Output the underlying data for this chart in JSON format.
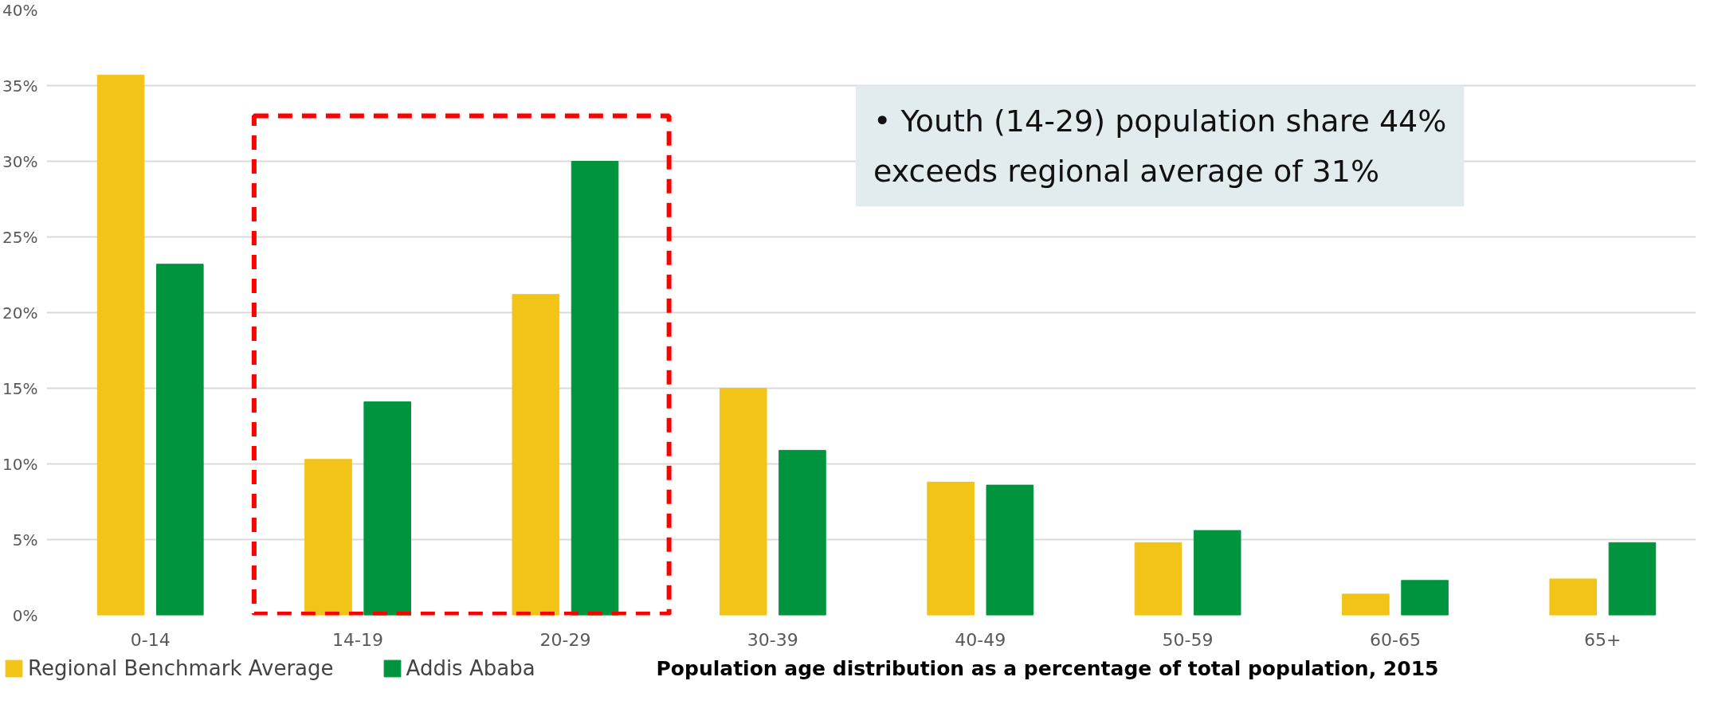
{
  "chart_data": {
    "type": "bar",
    "title": "Population age distribution as a percentage of total population, 2015",
    "categories": [
      "0-14",
      "14-19",
      "20-29",
      "30-39",
      "40-49",
      "50-59",
      "60-65",
      "65+"
    ],
    "series": [
      {
        "name": "Regional Benchmark Average",
        "color": "#f2c417",
        "values": [
          35.7,
          10.3,
          21.2,
          15.0,
          8.8,
          4.8,
          1.4,
          2.4
        ]
      },
      {
        "name": "Addis Ababa",
        "color": "#00943f",
        "values": [
          23.2,
          14.1,
          30.0,
          10.9,
          8.6,
          5.6,
          2.3,
          4.8
        ]
      }
    ],
    "ylim": [
      0,
      40
    ],
    "yticks": [
      {
        "value": 0,
        "label": "0%"
      },
      {
        "value": 5,
        "label": "5%"
      },
      {
        "value": 10,
        "label": "10%"
      },
      {
        "value": 15,
        "label": "15%"
      },
      {
        "value": 20,
        "label": "20%"
      },
      {
        "value": 25,
        "label": "25%"
      },
      {
        "value": 30,
        "label": "30%"
      },
      {
        "value": 35,
        "label": "35%"
      },
      {
        "value": 40,
        "label": "40%"
      }
    ],
    "grid": "y",
    "legend": "bottom",
    "annotations": [
      "• Youth (14-29) population share 44%\n   exceeds regional average of 31%"
    ]
  }
}
